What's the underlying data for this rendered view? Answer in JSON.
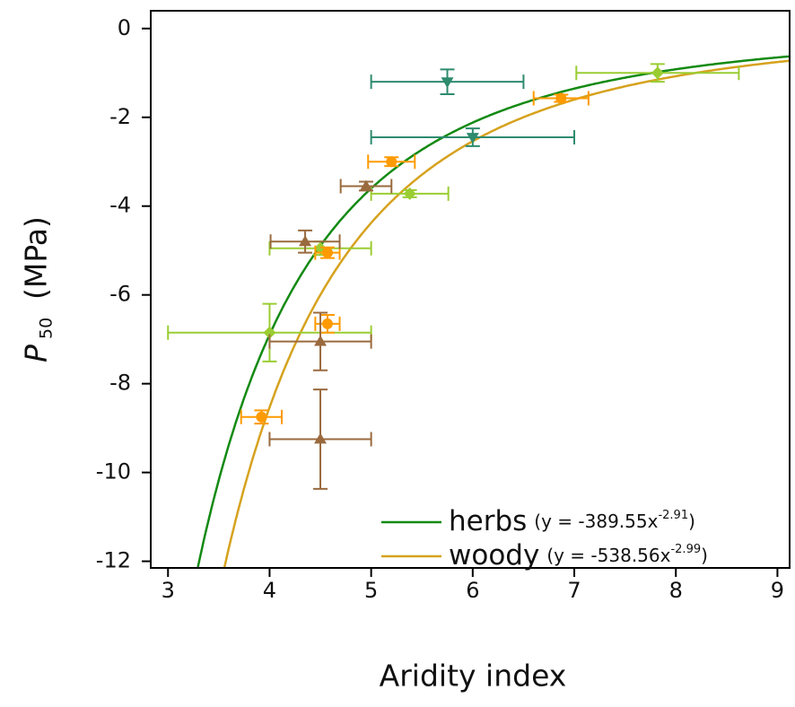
{
  "chart_data": {
    "type": "scatter",
    "x_label": "Aridity index",
    "y_label": "P",
    "y_label_subscript": "50",
    "y_label_unit": "(MPa)",
    "xlim": [
      2.83,
      9.12
    ],
    "xticks": [
      3,
      4,
      5,
      6,
      7,
      8,
      9
    ],
    "ylim": [
      -12.15,
      0.4
    ],
    "yticks": [
      0,
      -2,
      -4,
      -6,
      -8,
      -10,
      -12
    ],
    "series": [
      {
        "marker": "triangle-down",
        "color": "#2e8b6e",
        "x": [
          5.75,
          6.0
        ],
        "values": [
          -1.2,
          -2.45
        ],
        "xerr": [
          0.75,
          1.0
        ],
        "yerr": [
          0.28,
          0.2
        ]
      },
      {
        "marker": "diamond",
        "color": "#9acd32",
        "x": [
          7.82,
          5.38,
          4.5,
          4.0
        ],
        "values": [
          -1.0,
          -3.72,
          -4.95,
          -6.85
        ],
        "xerr": [
          0.8,
          0.38,
          0.5,
          1.0
        ],
        "yerr": [
          0.2,
          0.08,
          0.15,
          0.65
        ]
      },
      {
        "marker": "circle",
        "color": "#ff9a00",
        "x": [
          6.87,
          5.2,
          4.57,
          4.57,
          3.92
        ],
        "values": [
          -1.57,
          -3.0,
          -5.05,
          -6.65,
          -8.75
        ],
        "xerr": [
          0.27,
          0.23,
          0.12,
          0.12,
          0.2
        ],
        "yerr": [
          0.08,
          0.1,
          0.12,
          0.2,
          0.15
        ]
      },
      {
        "marker": "triangle-up",
        "color": "#9a6a3e",
        "x": [
          4.95,
          4.35,
          4.5,
          4.5
        ],
        "values": [
          -3.55,
          -4.8,
          -7.05,
          -9.25
        ],
        "xerr": [
          0.25,
          0.34,
          0.5,
          0.5
        ],
        "yerr": [
          0.1,
          0.25,
          0.65,
          1.12
        ]
      }
    ],
    "fits": [
      {
        "name": "herbs",
        "color": "#138a13",
        "coefficient": -389.55,
        "exponent": -2.91,
        "equation": "(y = -389.55x",
        "equation_exponent": "-2.91",
        "equation_end": ")"
      },
      {
        "name": "woody",
        "color": "#d6a21e",
        "coefficient": -538.56,
        "exponent": -2.99,
        "equation": "(y = -538.56x",
        "equation_exponent": "-2.99",
        "equation_end": ")"
      }
    ]
  }
}
